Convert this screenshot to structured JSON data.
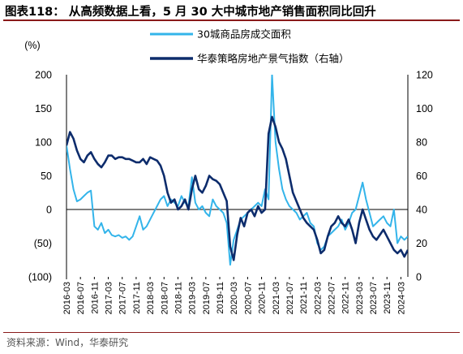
{
  "header": {
    "title": "图表118： 从高频数据上看，5 月 30 大中城市地产销售面积同比回升"
  },
  "footer": {
    "source": "资料来源：Wind，华泰研究"
  },
  "colors": {
    "series_30city": "#33b4ea",
    "series_index": "#0d2c6c",
    "title_rule": "#8a1a1a",
    "zero_line": "#000000"
  },
  "chart_data": {
    "type": "line",
    "left_axis": {
      "unit": "(%)",
      "ylim": [
        -100,
        200
      ],
      "ticks": [
        200,
        150,
        100,
        50,
        0,
        -50,
        -100
      ],
      "tick_labels": [
        "200",
        "150",
        "100",
        "50",
        "0",
        "(50)",
        "(100)"
      ]
    },
    "right_axis": {
      "ylim": [
        0,
        120
      ],
      "ticks": [
        120,
        100,
        80,
        60,
        40,
        20,
        0
      ],
      "tick_labels": [
        "120",
        "100",
        "80",
        "60",
        "40",
        "20",
        "0"
      ]
    },
    "x_axis": {
      "start": "2016-03",
      "end": "2024-05",
      "tick_labels": [
        "2016-03",
        "2016-07",
        "2016-11",
        "2017-03",
        "2017-07",
        "2017-11",
        "2018-03",
        "2018-07",
        "2018-11",
        "2019-03",
        "2019-07",
        "2019-11",
        "2020-03",
        "2020-07",
        "2020-11",
        "2021-03",
        "2021-07",
        "2021-11",
        "2022-03",
        "2022-07",
        "2022-11",
        "2023-03",
        "2023-07",
        "2023-11",
        "2024-03"
      ]
    },
    "legend": {
      "placement": "top-center"
    },
    "grid": false,
    "series": [
      {
        "name": "30城商品房成交面积",
        "axis": "left",
        "color": "#33b4ea",
        "points": [
          [
            "2016-03",
            95
          ],
          [
            "2016-04",
            60
          ],
          [
            "2016-05",
            30
          ],
          [
            "2016-06",
            12
          ],
          [
            "2016-07",
            15
          ],
          [
            "2016-08",
            20
          ],
          [
            "2016-09",
            25
          ],
          [
            "2016-10",
            28
          ],
          [
            "2016-11",
            -25
          ],
          [
            "2016-12",
            -30
          ],
          [
            "2017-01",
            -20
          ],
          [
            "2017-02",
            -35
          ],
          [
            "2017-03",
            -30
          ],
          [
            "2017-04",
            -38
          ],
          [
            "2017-05",
            -40
          ],
          [
            "2017-06",
            -38
          ],
          [
            "2017-07",
            -42
          ],
          [
            "2017-08",
            -40
          ],
          [
            "2017-09",
            -45
          ],
          [
            "2017-10",
            -40
          ],
          [
            "2017-11",
            -25
          ],
          [
            "2017-12",
            -10
          ],
          [
            "2018-01",
            -30
          ],
          [
            "2018-02",
            -25
          ],
          [
            "2018-03",
            -15
          ],
          [
            "2018-04",
            -5
          ],
          [
            "2018-05",
            5
          ],
          [
            "2018-06",
            15
          ],
          [
            "2018-07",
            20
          ],
          [
            "2018-08",
            5
          ],
          [
            "2018-09",
            15
          ],
          [
            "2018-10",
            10
          ],
          [
            "2018-11",
            5
          ],
          [
            "2018-12",
            20
          ],
          [
            "2019-01",
            10
          ],
          [
            "2019-02",
            5
          ],
          [
            "2019-03",
            48
          ],
          [
            "2019-04",
            10
          ],
          [
            "2019-05",
            0
          ],
          [
            "2019-06",
            5
          ],
          [
            "2019-07",
            -5
          ],
          [
            "2019-08",
            -10
          ],
          [
            "2019-09",
            15
          ],
          [
            "2019-10",
            5
          ],
          [
            "2019-11",
            0
          ],
          [
            "2019-12",
            -5
          ],
          [
            "2020-01",
            -20
          ],
          [
            "2020-02",
            -82
          ],
          [
            "2020-03",
            -45
          ],
          [
            "2020-04",
            -30
          ],
          [
            "2020-05",
            -15
          ],
          [
            "2020-06",
            -10
          ],
          [
            "2020-07",
            -5
          ],
          [
            "2020-08",
            0
          ],
          [
            "2020-09",
            5
          ],
          [
            "2020-10",
            10
          ],
          [
            "2020-11",
            5
          ],
          [
            "2020-12",
            30
          ],
          [
            "2021-01",
            15
          ],
          [
            "2021-02",
            200
          ],
          [
            "2021-03",
            100
          ],
          [
            "2021-04",
            60
          ],
          [
            "2021-05",
            30
          ],
          [
            "2021-06",
            15
          ],
          [
            "2021-07",
            5
          ],
          [
            "2021-08",
            0
          ],
          [
            "2021-09",
            -5
          ],
          [
            "2021-10",
            -15
          ],
          [
            "2021-11",
            -10
          ],
          [
            "2021-12",
            -5
          ],
          [
            "2022-01",
            -20
          ],
          [
            "2022-02",
            -25
          ],
          [
            "2022-03",
            -50
          ],
          [
            "2022-04",
            -60
          ],
          [
            "2022-05",
            -55
          ],
          [
            "2022-06",
            -40
          ],
          [
            "2022-07",
            -35
          ],
          [
            "2022-08",
            -30
          ],
          [
            "2022-09",
            -25
          ],
          [
            "2022-10",
            -15
          ],
          [
            "2022-11",
            -30
          ],
          [
            "2022-12",
            -20
          ],
          [
            "2023-01",
            -5
          ],
          [
            "2023-02",
            0
          ],
          [
            "2023-03",
            20
          ],
          [
            "2023-04",
            40
          ],
          [
            "2023-05",
            15
          ],
          [
            "2023-06",
            -5
          ],
          [
            "2023-07",
            -25
          ],
          [
            "2023-08",
            -20
          ],
          [
            "2023-09",
            -15
          ],
          [
            "2023-10",
            -10
          ],
          [
            "2023-11",
            -20
          ],
          [
            "2023-12",
            -25
          ],
          [
            "2024-01",
            0
          ],
          [
            "2024-02",
            -50
          ],
          [
            "2024-03",
            -40
          ],
          [
            "2024-04",
            -45
          ],
          [
            "2024-05",
            -40
          ]
        ]
      },
      {
        "name": "华泰策略房地产景气指数（右轴）",
        "axis": "right",
        "color": "#0d2c6c",
        "points": [
          [
            "2016-03",
            78
          ],
          [
            "2016-04",
            86
          ],
          [
            "2016-05",
            82
          ],
          [
            "2016-06",
            75
          ],
          [
            "2016-07",
            70
          ],
          [
            "2016-08",
            68
          ],
          [
            "2016-09",
            72
          ],
          [
            "2016-10",
            74
          ],
          [
            "2016-11",
            70
          ],
          [
            "2016-12",
            67
          ],
          [
            "2017-01",
            65
          ],
          [
            "2017-02",
            68
          ],
          [
            "2017-03",
            72
          ],
          [
            "2017-04",
            72
          ],
          [
            "2017-05",
            70
          ],
          [
            "2017-06",
            71
          ],
          [
            "2017-07",
            71
          ],
          [
            "2017-08",
            70
          ],
          [
            "2017-09",
            70
          ],
          [
            "2017-10",
            69
          ],
          [
            "2017-11",
            68
          ],
          [
            "2017-12",
            68
          ],
          [
            "2018-01",
            70
          ],
          [
            "2018-02",
            67
          ],
          [
            "2018-03",
            71
          ],
          [
            "2018-04",
            70
          ],
          [
            "2018-05",
            69
          ],
          [
            "2018-06",
            66
          ],
          [
            "2018-07",
            60
          ],
          [
            "2018-08",
            50
          ],
          [
            "2018-09",
            44
          ],
          [
            "2018-10",
            46
          ],
          [
            "2018-11",
            40
          ],
          [
            "2018-12",
            42
          ],
          [
            "2019-01",
            46
          ],
          [
            "2019-02",
            40
          ],
          [
            "2019-03",
            52
          ],
          [
            "2019-04",
            60
          ],
          [
            "2019-05",
            52
          ],
          [
            "2019-06",
            50
          ],
          [
            "2019-07",
            54
          ],
          [
            "2019-08",
            60
          ],
          [
            "2019-09",
            58
          ],
          [
            "2019-10",
            57
          ],
          [
            "2019-11",
            55
          ],
          [
            "2019-12",
            50
          ],
          [
            "2020-01",
            45
          ],
          [
            "2020-02",
            18
          ],
          [
            "2020-03",
            10
          ],
          [
            "2020-04",
            25
          ],
          [
            "2020-05",
            35
          ],
          [
            "2020-06",
            30
          ],
          [
            "2020-07",
            38
          ],
          [
            "2020-08",
            40
          ],
          [
            "2020-09",
            36
          ],
          [
            "2020-10",
            42
          ],
          [
            "2020-11",
            38
          ],
          [
            "2020-12",
            40
          ],
          [
            "2021-01",
            85
          ],
          [
            "2021-02",
            95
          ],
          [
            "2021-03",
            89
          ],
          [
            "2021-04",
            80
          ],
          [
            "2021-05",
            76
          ],
          [
            "2021-06",
            70
          ],
          [
            "2021-07",
            60
          ],
          [
            "2021-08",
            50
          ],
          [
            "2021-09",
            45
          ],
          [
            "2021-10",
            40
          ],
          [
            "2021-11",
            35
          ],
          [
            "2021-12",
            32
          ],
          [
            "2022-01",
            30
          ],
          [
            "2022-02",
            28
          ],
          [
            "2022-03",
            22
          ],
          [
            "2022-04",
            14
          ],
          [
            "2022-05",
            16
          ],
          [
            "2022-06",
            24
          ],
          [
            "2022-07",
            30
          ],
          [
            "2022-08",
            32
          ],
          [
            "2022-09",
            36
          ],
          [
            "2022-10",
            32
          ],
          [
            "2022-11",
            30
          ],
          [
            "2022-12",
            34
          ],
          [
            "2023-01",
            28
          ],
          [
            "2023-02",
            20
          ],
          [
            "2023-03",
            32
          ],
          [
            "2023-04",
            40
          ],
          [
            "2023-05",
            34
          ],
          [
            "2023-06",
            28
          ],
          [
            "2023-07",
            24
          ],
          [
            "2023-08",
            22
          ],
          [
            "2023-09",
            25
          ],
          [
            "2023-10",
            28
          ],
          [
            "2023-11",
            24
          ],
          [
            "2023-12",
            20
          ],
          [
            "2024-01",
            16
          ],
          [
            "2024-02",
            14
          ],
          [
            "2024-03",
            16
          ],
          [
            "2024-04",
            12
          ],
          [
            "2024-05",
            16
          ]
        ]
      }
    ]
  }
}
